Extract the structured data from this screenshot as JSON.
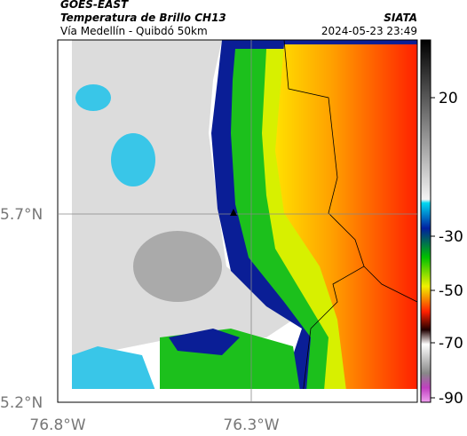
{
  "header": {
    "source": "GOES-EAST",
    "title": "Temperatura de Brillo CH13",
    "subtitle": "Vía Medellín - Quibdó 50km",
    "brand": "SIATA",
    "datetime": "2024-05-23 23:49"
  },
  "axes": {
    "lat_labels": [
      "5.7°N",
      "5.2°N"
    ],
    "lon_labels": [
      "76.8°W",
      "76.3°W"
    ]
  },
  "colorbar": {
    "labels": [
      "20",
      "-30",
      "-50",
      "-70",
      "-90"
    ]
  }
}
